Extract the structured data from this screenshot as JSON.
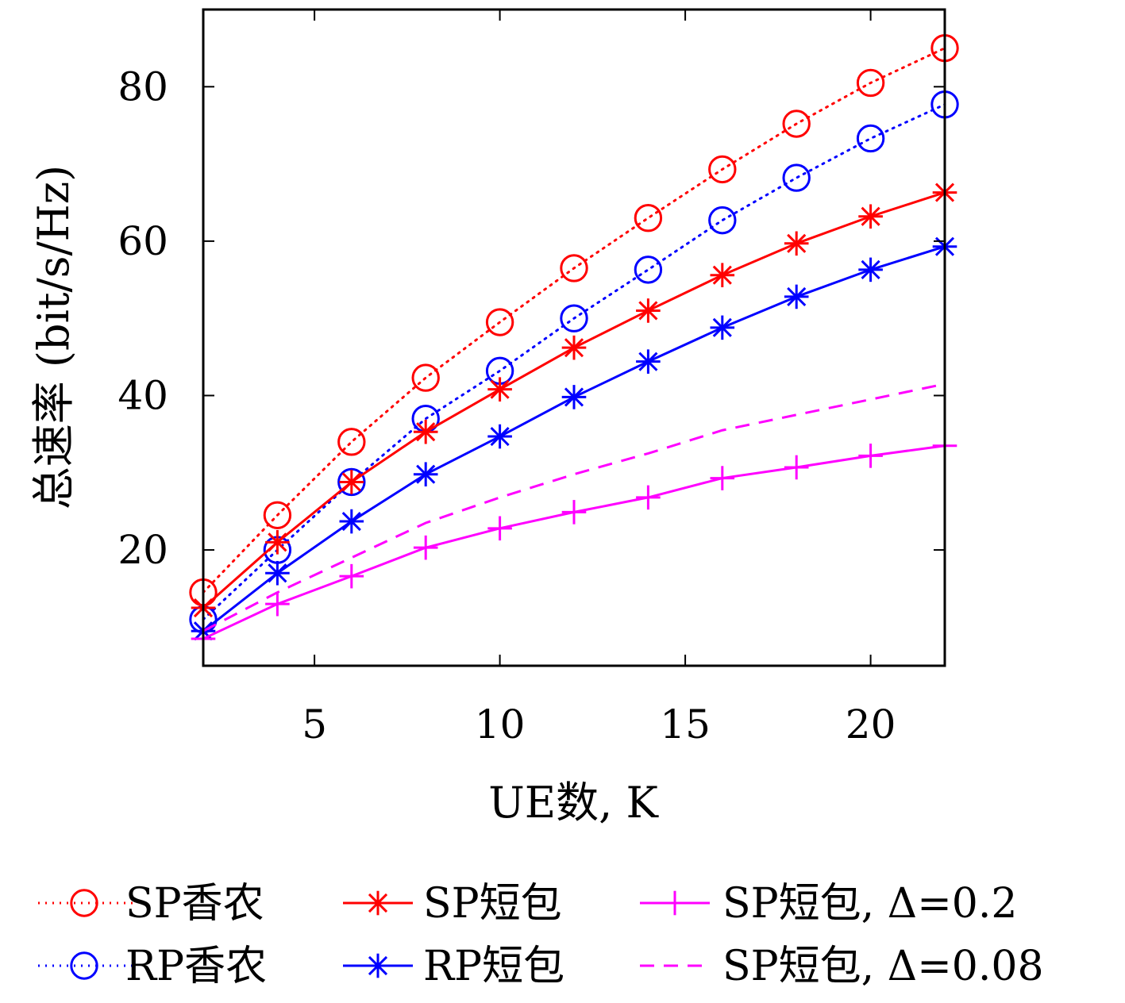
{
  "chart_data": {
    "type": "line",
    "xlabel": "UE数, K",
    "ylabel": "总速率 (bit/s/Hz)",
    "xlim": [
      2,
      22
    ],
    "ylim": [
      5,
      90
    ],
    "xticks": [
      5,
      10,
      15,
      20
    ],
    "yticks": [
      20,
      40,
      60,
      80
    ],
    "grid": false,
    "legend_position": "bottom",
    "x": [
      2,
      4,
      6,
      8,
      10,
      12,
      14,
      16,
      18,
      20,
      22
    ],
    "series": [
      {
        "name": "SP香农",
        "color": "#ff0000",
        "line": "dotted",
        "marker": "circle",
        "values": [
          14.5,
          24.5,
          34,
          42.3,
          49.5,
          56.5,
          63,
          69.3,
          75.2,
          80.5,
          85
        ]
      },
      {
        "name": "RP香农",
        "color": "#0000ff",
        "line": "dotted",
        "marker": "circle",
        "values": [
          11,
          20,
          28.8,
          37,
          43.2,
          50,
          56.3,
          62.7,
          68.2,
          73.3,
          77.7
        ]
      },
      {
        "name": "SP短包",
        "color": "#ff0000",
        "line": "solid",
        "marker": "asterisk",
        "values": [
          12.5,
          21,
          28.8,
          35.3,
          40.8,
          46.2,
          51,
          55.6,
          59.7,
          63.2,
          66.3
        ]
      },
      {
        "name": "RP短包",
        "color": "#0000ff",
        "line": "solid",
        "marker": "asterisk",
        "values": [
          9.5,
          17,
          23.7,
          29.8,
          34.7,
          39.8,
          44.4,
          48.8,
          52.8,
          56.3,
          59.3
        ]
      },
      {
        "name": "SP短包, Δ=0.2",
        "color": "#ff00ff",
        "line": "solid",
        "marker": "plus",
        "values": [
          8.5,
          13,
          16.6,
          20.3,
          22.8,
          24.9,
          26.8,
          29.3,
          30.7,
          32.2,
          33.5
        ]
      },
      {
        "name": "SP短包, Δ=0.08",
        "color": "#ff00ff",
        "line": "dashed",
        "marker": "none",
        "values": [
          9.5,
          14.5,
          19,
          23.5,
          26.8,
          29.8,
          32.5,
          35.5,
          37.5,
          39.5,
          41.5
        ]
      }
    ]
  }
}
